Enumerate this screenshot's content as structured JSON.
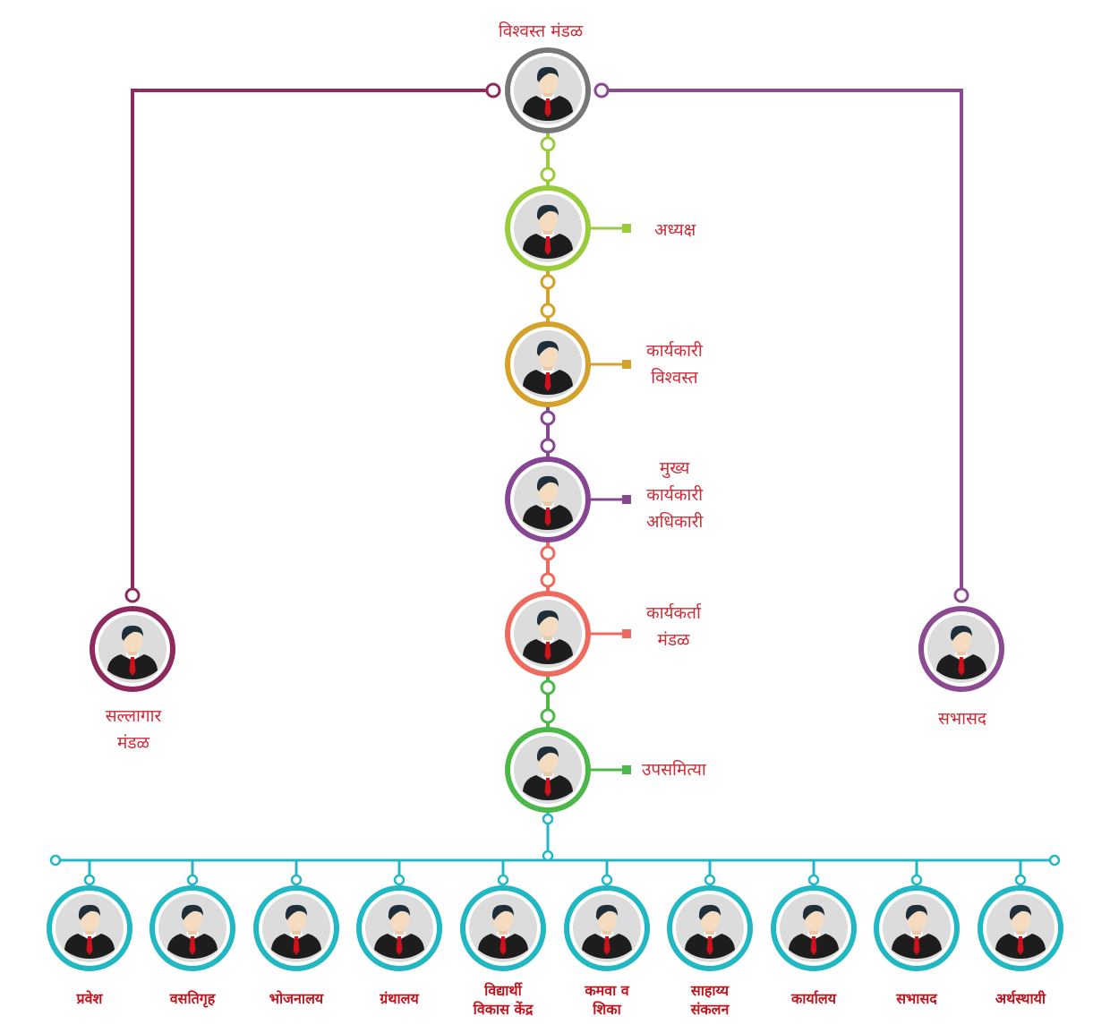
{
  "colors": {
    "top": "#777777",
    "left_branch": "#8e2a5e",
    "right_branch": "#8b4a91",
    "adhyaksha": "#9acb3c",
    "karyakari_vishwast": "#d4a12b",
    "mukhya": "#874693",
    "karyakarta": "#ef6a5e",
    "upasamitya": "#4cb849",
    "subcommittee": "#21b7c3",
    "label": "#d12a35"
  },
  "top": {
    "label": "विश्वस्त मंडळ"
  },
  "left_node": {
    "label": "सल्लागार\nमंडळ"
  },
  "right_node": {
    "label": "सभासद"
  },
  "chain": [
    {
      "key": "adhyaksha",
      "label": "अध्यक्ष"
    },
    {
      "key": "karyakari_vishwast",
      "label": "कार्यकारी\nविश्वस्त"
    },
    {
      "key": "mukhya",
      "label": "मुख्य\nकार्यकारी\nअधिकारी"
    },
    {
      "key": "karyakarta",
      "label": "कार्यकर्ता\nमंडळ"
    },
    {
      "key": "upasamitya",
      "label": "उपसमित्या"
    }
  ],
  "subcommittees": [
    "प्रवेश",
    "वसतिगृह",
    "भोजनालय",
    "ग्रंथालय",
    "विद्यार्थी\nविकास केंद्र",
    "कमवा व\nशिका",
    "साहाय्य\nसंकलन",
    "कार्यालय",
    "सभासद",
    "अर्थस्थायी"
  ]
}
